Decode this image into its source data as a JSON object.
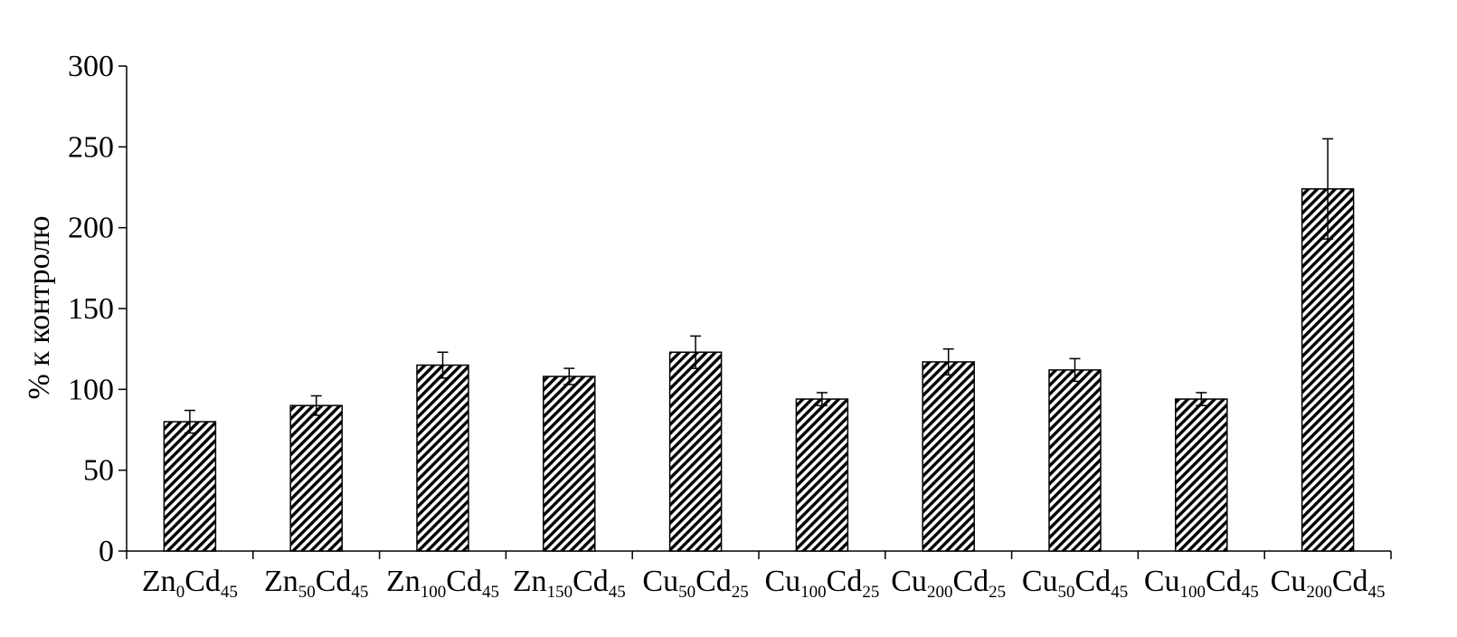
{
  "chart_data": {
    "type": "bar",
    "ylabel": "% к контролю",
    "xlabel": "",
    "ylim": [
      0,
      300
    ],
    "yticks": [
      0,
      50,
      100,
      150,
      200,
      250,
      300
    ],
    "grid": false,
    "bar_pattern": "diagonal-hatch",
    "categories": [
      {
        "parts": [
          {
            "t": "Zn"
          },
          {
            "t": "0",
            "sub": true
          },
          {
            "t": "Cd"
          },
          {
            "t": "45",
            "sub": true
          }
        ]
      },
      {
        "parts": [
          {
            "t": "Zn"
          },
          {
            "t": "50",
            "sub": true
          },
          {
            "t": "Cd"
          },
          {
            "t": "45",
            "sub": true
          }
        ]
      },
      {
        "parts": [
          {
            "t": "Zn"
          },
          {
            "t": "100",
            "sub": true
          },
          {
            "t": "Cd"
          },
          {
            "t": "45",
            "sub": true
          }
        ]
      },
      {
        "parts": [
          {
            "t": "Zn"
          },
          {
            "t": "150",
            "sub": true
          },
          {
            "t": "Cd"
          },
          {
            "t": "45",
            "sub": true
          }
        ]
      },
      {
        "parts": [
          {
            "t": "Cu"
          },
          {
            "t": "50",
            "sub": true
          },
          {
            "t": "Cd"
          },
          {
            "t": "25",
            "sub": true
          }
        ]
      },
      {
        "parts": [
          {
            "t": "Cu"
          },
          {
            "t": "100",
            "sub": true
          },
          {
            "t": "Cd"
          },
          {
            "t": "25",
            "sub": true
          }
        ]
      },
      {
        "parts": [
          {
            "t": "Cu"
          },
          {
            "t": "200",
            "sub": true
          },
          {
            "t": "Cd"
          },
          {
            "t": "25",
            "sub": true
          }
        ]
      },
      {
        "parts": [
          {
            "t": "Cu"
          },
          {
            "t": "50",
            "sub": true
          },
          {
            "t": "Cd"
          },
          {
            "t": "45",
            "sub": true
          }
        ]
      },
      {
        "parts": [
          {
            "t": "Cu"
          },
          {
            "t": "100",
            "sub": true
          },
          {
            "t": "Cd"
          },
          {
            "t": "45",
            "sub": true
          }
        ]
      },
      {
        "parts": [
          {
            "t": "Cu"
          },
          {
            "t": "200",
            "sub": true
          },
          {
            "t": "Cd"
          },
          {
            "t": "45",
            "sub": true
          }
        ]
      }
    ],
    "values": [
      80,
      90,
      115,
      108,
      123,
      94,
      117,
      112,
      94,
      224
    ],
    "errors": [
      7,
      6,
      8,
      5,
      10,
      4,
      8,
      7,
      4,
      31
    ]
  }
}
